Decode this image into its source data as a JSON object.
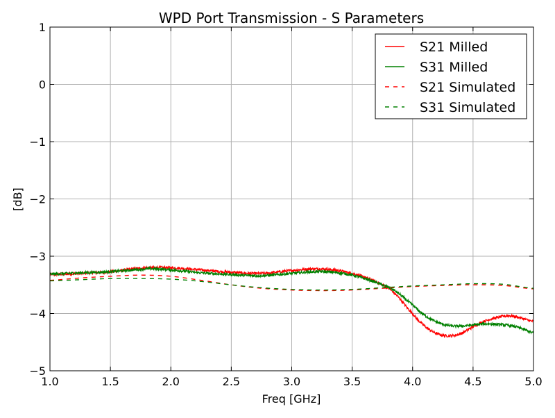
{
  "chart_data": {
    "type": "line",
    "title": "WPD Port Transmission - S Parameters",
    "xlabel": "Freq [GHz]",
    "ylabel": "[dB]",
    "xlim": [
      1.0,
      5.0
    ],
    "ylim": [
      -5,
      1
    ],
    "x_ticks": [
      "1.0",
      "1.5",
      "2.0",
      "2.5",
      "3.0",
      "3.5",
      "4.0",
      "4.5",
      "5.0"
    ],
    "y_ticks": [
      "1",
      "0",
      "−1",
      "−2",
      "−3",
      "−4",
      "−5"
    ],
    "grid": true,
    "legend_position": "top-right",
    "series": [
      {
        "name": "S21 Milled",
        "color": "#ff0000",
        "style": "solid",
        "noisy": true,
        "x": [
          1.0,
          1.25,
          1.5,
          1.75,
          1.85,
          2.0,
          2.25,
          2.5,
          2.75,
          3.0,
          3.2,
          3.35,
          3.5,
          3.65,
          3.75,
          3.85,
          4.0,
          4.1,
          4.2,
          4.3,
          4.4,
          4.5,
          4.6,
          4.7,
          4.8,
          4.9,
          5.0
        ],
        "y": [
          -3.32,
          -3.3,
          -3.27,
          -3.21,
          -3.2,
          -3.2,
          -3.24,
          -3.28,
          -3.3,
          -3.25,
          -3.22,
          -3.24,
          -3.3,
          -3.4,
          -3.5,
          -3.65,
          -4.0,
          -4.22,
          -4.35,
          -4.39,
          -4.35,
          -4.23,
          -4.13,
          -4.07,
          -4.04,
          -4.08,
          -4.14
        ]
      },
      {
        "name": "S31 Milled",
        "color": "#008000",
        "style": "solid",
        "noisy": true,
        "x": [
          1.0,
          1.25,
          1.5,
          1.75,
          1.85,
          2.0,
          2.25,
          2.5,
          2.75,
          3.0,
          3.2,
          3.35,
          3.5,
          3.65,
          3.75,
          3.85,
          4.0,
          4.1,
          4.2,
          4.3,
          4.4,
          4.5,
          4.6,
          4.7,
          4.8,
          4.9,
          5.0
        ],
        "y": [
          -3.31,
          -3.29,
          -3.27,
          -3.23,
          -3.22,
          -3.24,
          -3.29,
          -3.32,
          -3.34,
          -3.3,
          -3.27,
          -3.28,
          -3.33,
          -3.42,
          -3.5,
          -3.6,
          -3.85,
          -4.03,
          -4.15,
          -4.21,
          -4.22,
          -4.2,
          -4.18,
          -4.19,
          -4.21,
          -4.26,
          -4.34
        ]
      },
      {
        "name": "S21 Simulated",
        "color": "#ff0000",
        "style": "dashed",
        "x": [
          1.0,
          1.25,
          1.5,
          1.75,
          2.0,
          2.25,
          2.5,
          2.75,
          3.0,
          3.25,
          3.5,
          3.75,
          4.0,
          4.25,
          4.5,
          4.75,
          5.0
        ],
        "y": [
          -3.42,
          -3.38,
          -3.35,
          -3.33,
          -3.35,
          -3.42,
          -3.5,
          -3.56,
          -3.59,
          -3.6,
          -3.59,
          -3.56,
          -3.53,
          -3.51,
          -3.5,
          -3.51,
          -3.57
        ]
      },
      {
        "name": "S31 Simulated",
        "color": "#008000",
        "style": "dashed",
        "x": [
          1.0,
          1.25,
          1.5,
          1.75,
          2.0,
          2.25,
          2.5,
          2.75,
          3.0,
          3.25,
          3.5,
          3.75,
          4.0,
          4.25,
          4.5,
          4.75,
          5.0
        ],
        "y": [
          -3.43,
          -3.41,
          -3.39,
          -3.39,
          -3.4,
          -3.44,
          -3.5,
          -3.55,
          -3.58,
          -3.59,
          -3.58,
          -3.55,
          -3.52,
          -3.5,
          -3.48,
          -3.49,
          -3.56
        ]
      }
    ]
  }
}
